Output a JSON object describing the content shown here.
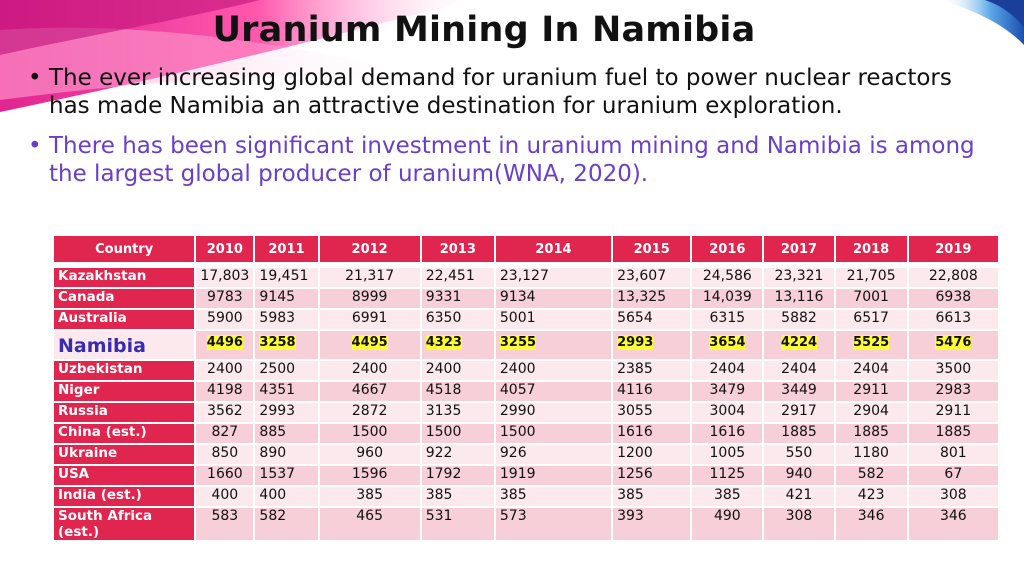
{
  "slide": {
    "title": "Uranium Mining In Namibia",
    "bullets": [
      "The ever increasing global demand for uranium fuel to power nuclear reactors has made Namibia an attractive destination for uranium exploration.",
      "There has been significant investment in uranium mining and Namibia is among the largest global producer of uranium(WNA, 2020)."
    ],
    "bullet_symbol": "•"
  },
  "table": {
    "headers": [
      "Country",
      "2010",
      "2011",
      "2012",
      "2013",
      "2014",
      "2015",
      "2016",
      "2017",
      "2018",
      "2019"
    ],
    "rows": [
      {
        "country": "Kazakhstan",
        "values": [
          "17,803",
          "19,451",
          "21,317",
          "22,451",
          "23,127",
          "23,607",
          "24,586",
          "23,321",
          "21,705",
          "22,808"
        ]
      },
      {
        "country": "Canada",
        "values": [
          "9783",
          "9145",
          "8999",
          "9331",
          "9134",
          "13,325",
          "14,039",
          "13,116",
          "7001",
          "6938"
        ]
      },
      {
        "country": "Australia",
        "values": [
          "5900",
          "5983",
          "6991",
          "6350",
          "5001",
          "5654",
          "6315",
          "5882",
          "6517",
          "6613"
        ]
      },
      {
        "country": "Namibia",
        "values": [
          "4496",
          "3258",
          "4495",
          "4323",
          "3255",
          "2993",
          "3654",
          "4224",
          "5525",
          "5476"
        ],
        "highlight": true
      },
      {
        "country": "Uzbekistan",
        "values": [
          "2400",
          "2500",
          "2400",
          "2400",
          "2400",
          "2385",
          "2404",
          "2404",
          "2404",
          "3500"
        ]
      },
      {
        "country": "Niger",
        "values": [
          "4198",
          "4351",
          "4667",
          "4518",
          "4057",
          "4116",
          "3479",
          "3449",
          "2911",
          "2983"
        ]
      },
      {
        "country": "Russia",
        "values": [
          "3562",
          "2993",
          "2872",
          "3135",
          "2990",
          "3055",
          "3004",
          "2917",
          "2904",
          "2911"
        ]
      },
      {
        "country": "China (est.)",
        "values": [
          "827",
          "885",
          "1500",
          "1500",
          "1500",
          "1616",
          "1616",
          "1885",
          "1885",
          "1885"
        ]
      },
      {
        "country": "Ukraine",
        "values": [
          "850",
          "890",
          "960",
          "922",
          "926",
          "1200",
          "1005",
          "550",
          "1180",
          "801"
        ]
      },
      {
        "country": "USA",
        "values": [
          "1660",
          "1537",
          "1596",
          "1792",
          "1919",
          "1256",
          "1125",
          "940",
          "582",
          "67"
        ]
      },
      {
        "country": "India (est.)",
        "values": [
          "400",
          "400",
          "385",
          "385",
          "385",
          "385",
          "385",
          "421",
          "423",
          "308"
        ]
      },
      {
        "country": "South Africa (est.)",
        "values": [
          "583",
          "582",
          "465",
          "531",
          "573",
          "393",
          "490",
          "308",
          "346",
          "346"
        ]
      }
    ]
  },
  "colors": {
    "header_bg": "#e0264e",
    "row_odd": "#f6cfd8",
    "row_even": "#fbe9ed",
    "highlight": "#ffff33",
    "bullet2_text": "#6a3fc8",
    "namibia_text": "#3a2bb0"
  }
}
